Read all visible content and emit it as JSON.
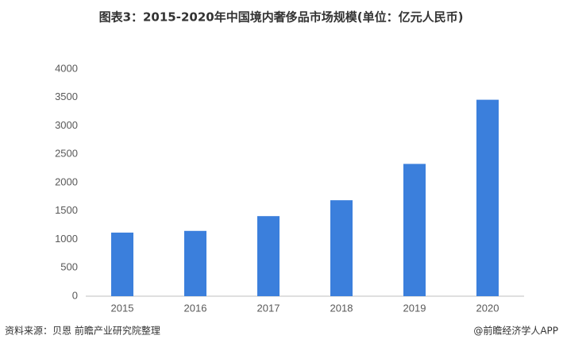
{
  "chart_data": {
    "type": "bar",
    "title": "图表3：2015-2020年中国境内奢侈品市场规模(单位：亿元人民币)",
    "categories": [
      "2015",
      "2016",
      "2017",
      "2018",
      "2019",
      "2020"
    ],
    "values": [
      1120,
      1150,
      1410,
      1690,
      2330,
      3460
    ],
    "color": "#3b7fdc",
    "ylim": [
      0,
      4000
    ],
    "yticks": [
      0,
      500,
      1000,
      1500,
      2000,
      2500,
      3000,
      3500,
      4000
    ],
    "grid": false,
    "source": "资料来源：贝恩 前瞻产业研究院整理",
    "credit": "@前瞻经济学人APP"
  }
}
